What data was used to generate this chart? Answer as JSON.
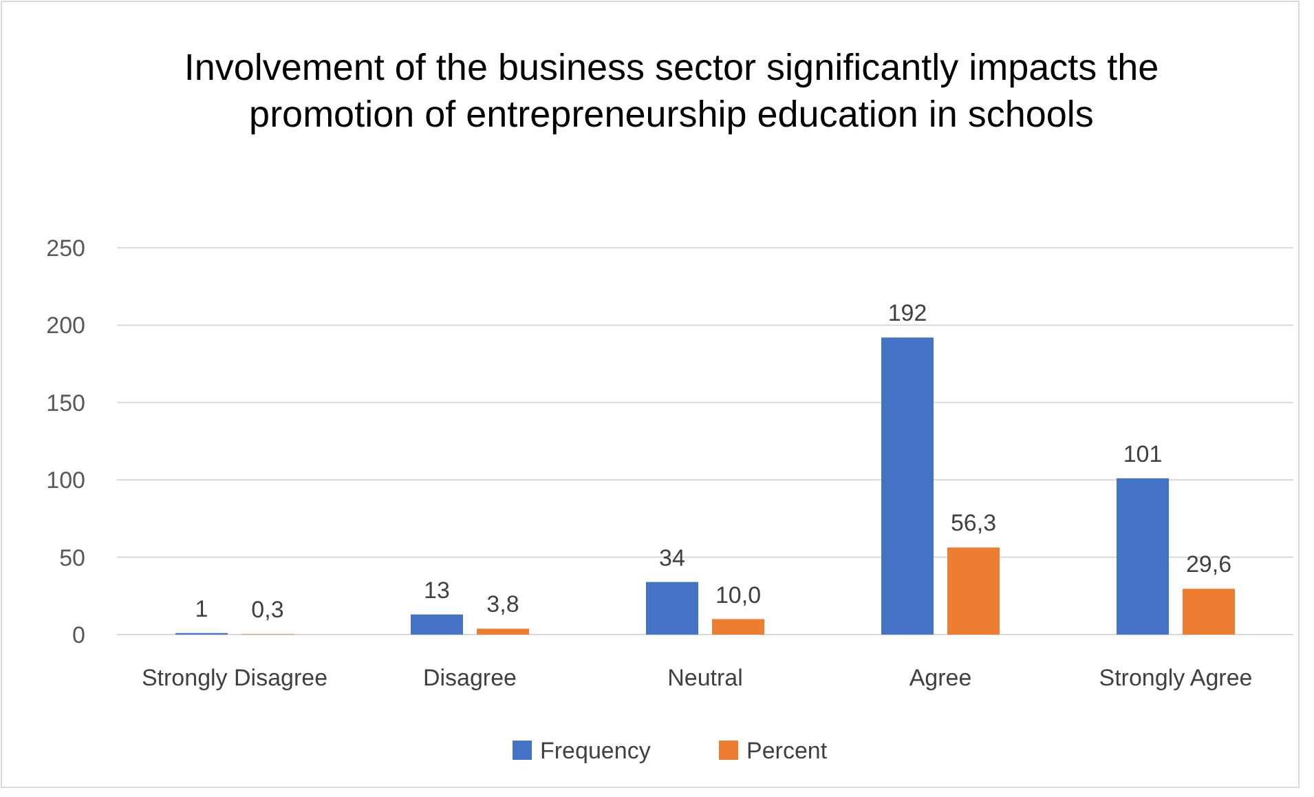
{
  "chart_data": {
    "type": "bar",
    "title": "Involvement of the business sector significantly impacts the promotion of entrepreneurship education in schools",
    "categories": [
      "Strongly Disagree",
      "Disagree",
      "Neutral",
      "Agree",
      "Strongly Agree"
    ],
    "series": [
      {
        "name": "Frequency",
        "color": "#4472c4",
        "values": [
          1,
          13,
          34,
          192,
          101
        ],
        "value_labels": [
          "1",
          "13",
          "34",
          "192",
          "101"
        ]
      },
      {
        "name": "Percent",
        "color": "#ed7d31",
        "values": [
          0.3,
          3.8,
          10.0,
          56.3,
          29.6
        ],
        "value_labels": [
          "0,3",
          "3,8",
          "10,0",
          "56,3",
          "29,6"
        ]
      }
    ],
    "ylim": [
      0,
      250
    ],
    "yticks": [
      0,
      50,
      100,
      150,
      200,
      250
    ],
    "grid": "y",
    "legend": "bottom"
  }
}
